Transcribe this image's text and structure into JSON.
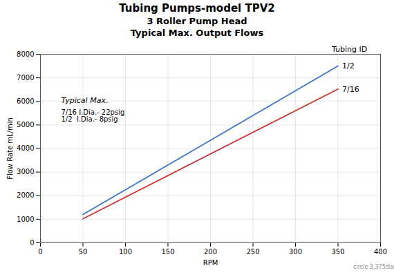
{
  "chart_data": {
    "type": "line",
    "title": "Tubing Pumps-model TPV2",
    "subtitle": [
      "3 Roller Pump Head",
      "Typical Max. Output Flows"
    ],
    "xlabel": "RPM",
    "ylabel": "Flow Rate mL/min",
    "x": [
      50,
      350
    ],
    "series": [
      {
        "name": "1/2",
        "color": "#3874c8",
        "values": [
          1200,
          7500
        ]
      },
      {
        "name": "7/16",
        "color": "#c83030",
        "values": [
          1020,
          6520
        ]
      }
    ],
    "xlim": [
      0,
      400
    ],
    "xticks": [
      0,
      50,
      100,
      150,
      200,
      250,
      300,
      350,
      400
    ],
    "ylim": [
      0,
      8000
    ],
    "yticks": [
      0,
      1000,
      2000,
      3000,
      4000,
      5000,
      6000,
      7000,
      8000
    ],
    "grid": true,
    "annotations": [
      "Tubing ID",
      "Typical Max.",
      "7/16 I.Dia.- 22psig",
      "1/2  I.Dia.- 8psig",
      "circle 3.375dia"
    ]
  }
}
